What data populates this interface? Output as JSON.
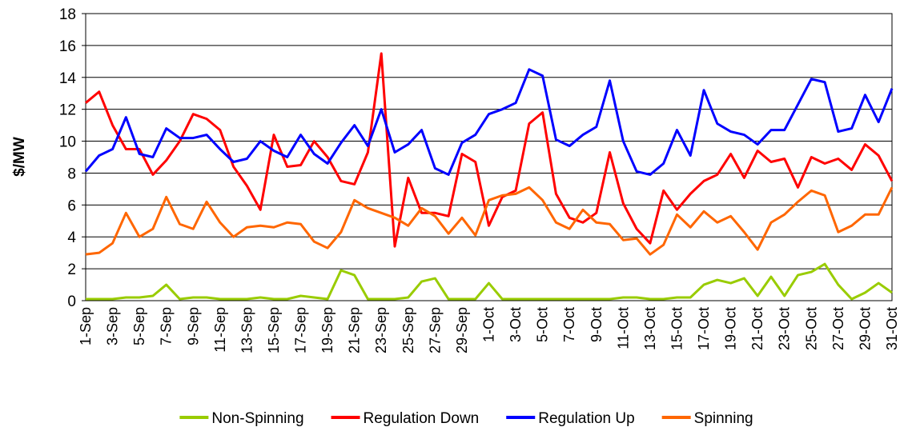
{
  "chart_data": {
    "type": "line",
    "ylabel": "$/MW",
    "categories": [
      "1-Sep",
      null,
      "3-Sep",
      null,
      "5-Sep",
      null,
      "7-Sep",
      null,
      "9-Sep",
      null,
      "11-Sep",
      null,
      "13-Sep",
      null,
      "15-Sep",
      null,
      "17-Sep",
      null,
      "19-Sep",
      null,
      "21-Sep",
      null,
      "23-Sep",
      null,
      "25-Sep",
      null,
      "27-Sep",
      null,
      "29-Sep",
      null,
      "1-Oct",
      null,
      "3-Oct",
      null,
      "5-Oct",
      null,
      "7-Oct",
      null,
      "9-Oct",
      null,
      "11-Oct",
      null,
      "13-Oct",
      null,
      "15-Oct",
      null,
      "17-Oct",
      null,
      "19-Oct",
      null,
      "21-Oct",
      null,
      "23-Oct",
      null,
      "25-Oct",
      null,
      "27-Oct",
      null,
      "29-Oct",
      null,
      "31-Oct"
    ],
    "series": [
      {
        "name": "Non-Spinning",
        "color": "#99cc00",
        "values": [
          0.1,
          0.1,
          0.1,
          0.2,
          0.2,
          0.3,
          1.0,
          0.1,
          0.2,
          0.2,
          0.1,
          0.1,
          0.1,
          0.2,
          0.1,
          0.1,
          0.3,
          0.2,
          0.1,
          1.9,
          1.6,
          0.1,
          0.1,
          0.1,
          0.2,
          1.2,
          1.4,
          0.1,
          0.1,
          0.1,
          1.1,
          0.1,
          0.1,
          0.1,
          0.1,
          0.1,
          0.1,
          0.1,
          0.1,
          0.1,
          0.2,
          0.2,
          0.1,
          0.1,
          0.2,
          0.2,
          1.0,
          1.3,
          1.1,
          1.4,
          0.3,
          1.5,
          0.3,
          1.6,
          1.8,
          2.3,
          1.0,
          0.1,
          0.5,
          1.1,
          0.5
        ]
      },
      {
        "name": "Regulation Down",
        "color": "#ff0000",
        "values": [
          12.4,
          13.1,
          11.0,
          9.5,
          9.5,
          7.9,
          8.8,
          10.0,
          11.7,
          11.4,
          10.7,
          8.4,
          7.2,
          5.7,
          10.4,
          8.4,
          8.5,
          10.0,
          9.0,
          7.5,
          7.3,
          9.3,
          15.5,
          3.4,
          7.7,
          5.5,
          5.5,
          5.3,
          9.2,
          8.7,
          4.7,
          6.5,
          6.9,
          11.1,
          11.8,
          6.7,
          5.2,
          4.9,
          5.5,
          9.3,
          6.1,
          4.5,
          3.6,
          6.9,
          5.7,
          6.7,
          7.5,
          7.9,
          9.2,
          7.7,
          9.4,
          8.7,
          8.9,
          7.1,
          9.0,
          8.6,
          8.9,
          8.2,
          9.8,
          9.1,
          7.5
        ]
      },
      {
        "name": "Regulation Up",
        "color": "#0000ff",
        "values": [
          8.1,
          9.1,
          9.5,
          11.5,
          9.2,
          9.0,
          10.8,
          10.2,
          10.2,
          10.4,
          9.5,
          8.7,
          8.9,
          10.0,
          9.4,
          9.0,
          10.4,
          9.2,
          8.6,
          9.9,
          11.0,
          9.7,
          12.0,
          9.3,
          9.8,
          10.7,
          8.3,
          7.9,
          9.9,
          10.4,
          11.7,
          12.0,
          12.4,
          14.5,
          14.1,
          10.1,
          9.7,
          10.4,
          10.9,
          13.8,
          10.0,
          8.1,
          7.9,
          8.6,
          10.7,
          9.1,
          13.2,
          11.1,
          10.6,
          10.4,
          9.8,
          10.7,
          10.7,
          12.3,
          13.9,
          13.7,
          10.6,
          10.8,
          12.9,
          11.2,
          13.3
        ]
      },
      {
        "name": "Spinning",
        "color": "#ff6600",
        "values": [
          2.9,
          3.0,
          3.6,
          5.5,
          4.0,
          4.5,
          6.5,
          4.8,
          4.5,
          6.2,
          4.9,
          4.0,
          4.6,
          4.7,
          4.6,
          4.9,
          4.8,
          3.7,
          3.3,
          4.3,
          6.3,
          5.8,
          5.5,
          5.2,
          4.7,
          5.8,
          5.3,
          4.2,
          5.2,
          4.1,
          6.3,
          6.6,
          6.7,
          7.1,
          6.3,
          4.9,
          4.5,
          5.7,
          4.9,
          4.8,
          3.8,
          3.9,
          2.9,
          3.5,
          5.4,
          4.6,
          5.6,
          4.9,
          5.3,
          4.3,
          3.2,
          4.9,
          5.4,
          6.2,
          6.9,
          6.6,
          4.3,
          4.7,
          5.4,
          5.4,
          7.1
        ]
      }
    ],
    "ylim": [
      0,
      18
    ],
    "yticks": [
      0,
      2,
      4,
      6,
      8,
      10,
      12,
      14,
      16,
      18
    ],
    "grid": true,
    "legend": "bottom"
  }
}
